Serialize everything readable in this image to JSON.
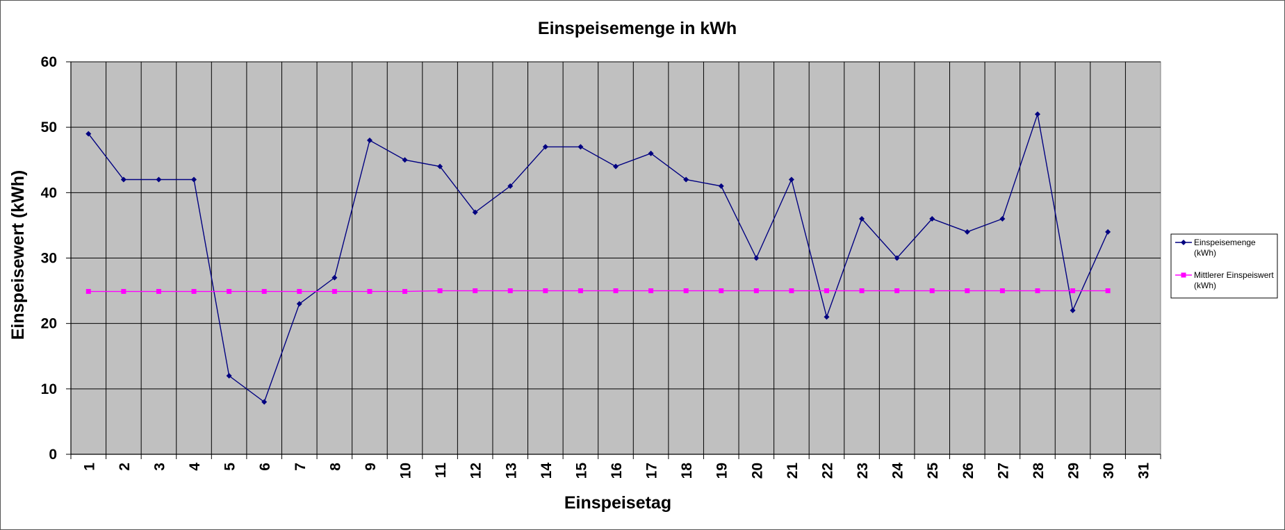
{
  "colors": {
    "plot_background": "#c0c0c0",
    "grid": "#000000",
    "series_main": "#000080",
    "series_mean": "#ff00ff"
  },
  "legend": {
    "position": "right",
    "items": [
      {
        "lines": [
          "Einspeisemenge",
          "(kWh)"
        ],
        "marker": "diamond",
        "color": "#000080"
      },
      {
        "lines": [
          "Mittlerer Einspeiswert",
          "(kWh)"
        ],
        "marker": "square",
        "color": "#ff00ff"
      }
    ]
  },
  "chart_data": {
    "type": "line",
    "title": "Einspeisemenge in kWh",
    "xlabel": "Einspeisetag",
    "ylabel": "Einspeisewert  (kWh)",
    "ylim": [
      0,
      60
    ],
    "yticks": [
      0,
      10,
      20,
      30,
      40,
      50,
      60
    ],
    "categories": [
      "1",
      "2",
      "3",
      "4",
      "5",
      "6",
      "7",
      "8",
      "9",
      "10",
      "11",
      "12",
      "13",
      "14",
      "15",
      "16",
      "17",
      "18",
      "19",
      "20",
      "21",
      "22",
      "23",
      "24",
      "25",
      "26",
      "27",
      "28",
      "29",
      "30",
      "31"
    ],
    "grid": true,
    "legend_placement": "right",
    "series": [
      {
        "name": "Einspeisemenge (kWh)",
        "marker": "diamond",
        "values": [
          49,
          42,
          42,
          42,
          12,
          8,
          23,
          27,
          48,
          45,
          44,
          37,
          41,
          47,
          47,
          44,
          46,
          42,
          41,
          30,
          42,
          21,
          36,
          30,
          36,
          34,
          36,
          52,
          22,
          34,
          null
        ]
      },
      {
        "name": "Mittlerer Einspeiswert (kWh)",
        "marker": "square",
        "values": [
          24.9,
          24.9,
          24.9,
          24.9,
          24.9,
          24.9,
          24.9,
          24.9,
          24.9,
          24.9,
          25,
          25,
          25,
          25,
          25,
          25,
          25,
          25,
          25,
          25,
          25,
          25,
          25,
          25,
          25,
          25,
          25,
          25,
          25,
          25,
          null
        ]
      }
    ]
  }
}
